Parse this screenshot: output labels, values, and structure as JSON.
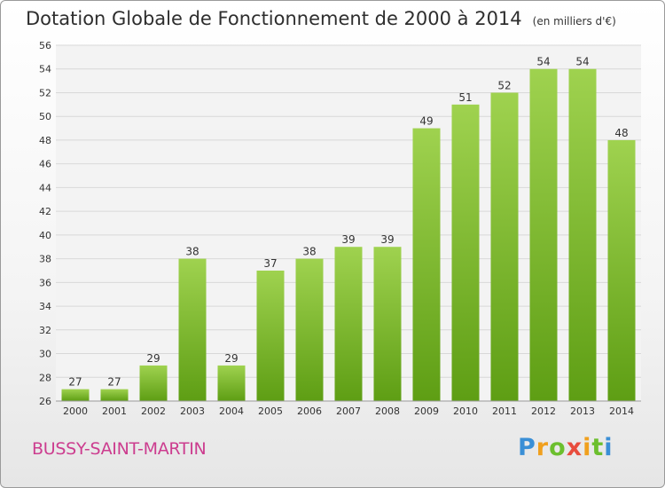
{
  "header": {
    "title": "Dotation Globale de Fonctionnement de 2000 à 2014",
    "unit": "(en milliers d'€)"
  },
  "footer": {
    "commune": "BUSSY-SAINT-MARTIN",
    "logo_text": "Proxiti"
  },
  "colors": {
    "bar_top": "#9fd24f",
    "bar_bottom": "#5e9e14",
    "commune_text": "#cc3d8f"
  },
  "chart_data": {
    "type": "bar",
    "title": "Dotation Globale de Fonctionnement de 2000 à 2014",
    "xlabel": "",
    "ylabel": "",
    "categories": [
      "2000",
      "2001",
      "2002",
      "2003",
      "2004",
      "2005",
      "2006",
      "2007",
      "2008",
      "2009",
      "2010",
      "2011",
      "2012",
      "2013",
      "2014"
    ],
    "values": [
      27,
      27,
      29,
      38,
      29,
      37,
      38,
      39,
      39,
      49,
      51,
      52,
      54,
      54,
      48
    ],
    "ylim": [
      26,
      56
    ],
    "yticks": [
      26,
      28,
      30,
      32,
      34,
      36,
      38,
      40,
      42,
      44,
      46,
      48,
      50,
      52,
      54,
      56
    ],
    "grid": true,
    "legend": "none"
  }
}
